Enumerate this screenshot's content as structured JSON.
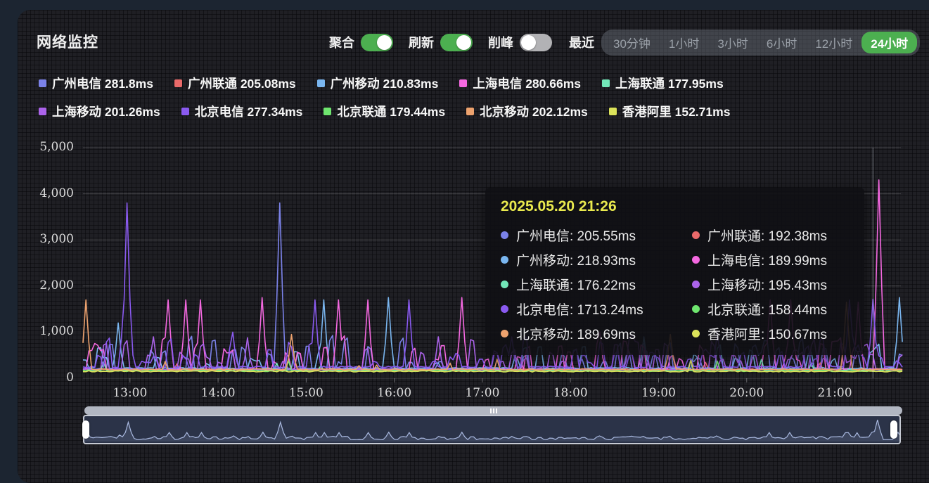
{
  "header": {
    "title": "网络监控",
    "toggles": [
      {
        "label": "聚合",
        "on": true
      },
      {
        "label": "刷新",
        "on": true
      },
      {
        "label": "削峰",
        "on": false
      }
    ],
    "recent_label": "最近",
    "time_ranges": [
      {
        "label": "30分钟",
        "active": false
      },
      {
        "label": "1小时",
        "active": false
      },
      {
        "label": "3小时",
        "active": false
      },
      {
        "label": "6小时",
        "active": false
      },
      {
        "label": "12小时",
        "active": false
      },
      {
        "label": "24小时",
        "active": true
      }
    ]
  },
  "colors": {
    "accent_green": "#4caf50",
    "toggle_off_gray": "#b2b2b5",
    "tooltip_date_yellow": "#e9e94e",
    "scrollbar_gray": "#b2b7c2",
    "mini_line_blue": "#a9b9e0",
    "panel_bg": "#1f1f24",
    "page_bg": "#1c2531"
  },
  "chart_data": {
    "type": "line",
    "title": "网络监控 latency (ms)",
    "unit": "ms",
    "grid": true,
    "legend_position": "top",
    "time_start": "12:28",
    "time_end": "21:45",
    "x_ticks": [
      "13:00",
      "14:00",
      "15:00",
      "16:00",
      "17:00",
      "18:00",
      "19:00",
      "20:00",
      "21:00"
    ],
    "y_ticks": [
      0,
      1000,
      2000,
      3000,
      4000,
      5000
    ],
    "ylim": [
      0,
      5000
    ],
    "series": [
      {
        "name": "广州电信",
        "color": "#7b82e9",
        "legend_value": "281.8ms",
        "baseline": 205,
        "volatility": "high",
        "spikes": [
          [
            "14:42",
            3800
          ]
        ]
      },
      {
        "name": "广州联通",
        "color": "#ea6a6a",
        "legend_value": "205.08ms",
        "baseline": 192,
        "volatility": "low",
        "spikes": []
      },
      {
        "name": "广州移动",
        "color": "#7ab6f0",
        "legend_value": "210.83ms",
        "baseline": 218,
        "volatility": "med",
        "spikes": [
          [
            "12:52",
            1200
          ],
          [
            "15:12",
            1700
          ],
          [
            "15:56",
            1750
          ],
          [
            "18:50",
            900
          ],
          [
            "21:43",
            1750
          ]
        ]
      },
      {
        "name": "上海电信",
        "color": "#f468e0",
        "legend_value": "280.66ms",
        "baseline": 190,
        "volatility": "high",
        "spikes": [
          [
            "13:26",
            1700
          ],
          [
            "13:38",
            1700
          ],
          [
            "13:47",
            1700
          ],
          [
            "14:30",
            1750
          ],
          [
            "15:21",
            1700
          ],
          [
            "15:41",
            1700
          ],
          [
            "16:45",
            1750
          ],
          [
            "18:20",
            1000
          ],
          [
            "20:15",
            1700
          ],
          [
            "20:30",
            1700
          ],
          [
            "21:16",
            1650
          ],
          [
            "21:30",
            4300
          ]
        ]
      },
      {
        "name": "上海联通",
        "color": "#72e6b8",
        "legend_value": "177.95ms",
        "baseline": 176,
        "volatility": "low",
        "spikes": []
      },
      {
        "name": "上海移动",
        "color": "#ab63ea",
        "legend_value": "201.26ms",
        "baseline": 195,
        "volatility": "high",
        "spikes": [
          [
            "13:15",
            900
          ],
          [
            "14:20",
            880
          ],
          [
            "16:30",
            900
          ],
          [
            "18:40",
            860
          ],
          [
            "20:45",
            850
          ]
        ]
      },
      {
        "name": "北京电信",
        "color": "#8a5af0",
        "legend_value": "277.34ms",
        "baseline": 245,
        "volatility": "high",
        "spikes": [
          [
            "12:57",
            3800
          ],
          [
            "14:10",
            1000
          ],
          [
            "15:05",
            1700
          ],
          [
            "16:10",
            1700
          ],
          [
            "17:20",
            900
          ],
          [
            "19:40",
            1000
          ],
          [
            "21:10",
            1700
          ],
          [
            "21:26",
            1713
          ]
        ]
      },
      {
        "name": "北京联通",
        "color": "#6fe66f",
        "legend_value": "179.44ms",
        "baseline": 158,
        "volatility": "low",
        "spikes": []
      },
      {
        "name": "北京移动",
        "color": "#eda26e",
        "legend_value": "202.12ms",
        "baseline": 190,
        "volatility": "low",
        "spikes": [
          [
            "12:30",
            1700
          ],
          [
            "14:50",
            950
          ],
          [
            "19:07",
            950
          ],
          [
            "21:07",
            1650
          ]
        ]
      },
      {
        "name": "香港阿里",
        "color": "#dbe25a",
        "legend_value": "152.71ms",
        "baseline": 150,
        "volatility": "low",
        "spikes": []
      }
    ]
  },
  "tooltip": {
    "datetime": "2025.05.20 21:26",
    "items": [
      {
        "name": "广州电信",
        "value": "205.55ms"
      },
      {
        "name": "广州联通",
        "value": "192.38ms"
      },
      {
        "name": "广州移动",
        "value": "218.93ms"
      },
      {
        "name": "上海电信",
        "value": "189.99ms"
      },
      {
        "name": "上海联通",
        "value": "176.22ms"
      },
      {
        "name": "上海移动",
        "value": "195.43ms"
      },
      {
        "name": "北京电信",
        "value": "1713.24ms"
      },
      {
        "name": "北京联通",
        "value": "158.44ms"
      },
      {
        "name": "北京移动",
        "value": "189.69ms"
      },
      {
        "name": "香港阿里",
        "value": "150.67ms"
      }
    ]
  },
  "axis_pointer_time": "21:26"
}
